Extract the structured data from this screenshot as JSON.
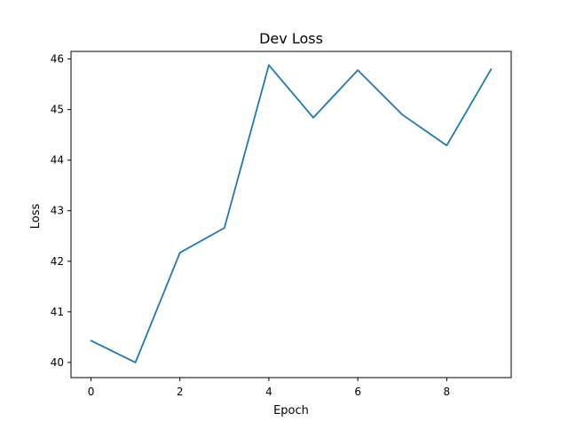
{
  "chart_data": {
    "type": "line",
    "title": "Dev Loss",
    "xlabel": "Epoch",
    "ylabel": "Loss",
    "xlim": [
      -0.45,
      9.45
    ],
    "ylim": [
      39.7,
      46.15
    ],
    "xticks": [
      0,
      2,
      4,
      6,
      8
    ],
    "xtick_labels": [
      "0",
      "2",
      "4",
      "6",
      "8"
    ],
    "yticks": [
      40,
      41,
      42,
      43,
      44,
      45,
      46
    ],
    "ytick_labels": [
      "40",
      "41",
      "42",
      "43",
      "44",
      "45",
      "46"
    ],
    "grid": false,
    "legend": false,
    "series": [
      {
        "name": "Dev Loss",
        "color": "#1f77b4",
        "x": [
          0,
          1,
          2,
          3,
          4,
          5,
          6,
          7,
          8,
          9
        ],
        "values": [
          40.43,
          40.0,
          42.17,
          42.66,
          45.88,
          44.84,
          45.78,
          44.9,
          44.29,
          45.8
        ]
      }
    ]
  }
}
